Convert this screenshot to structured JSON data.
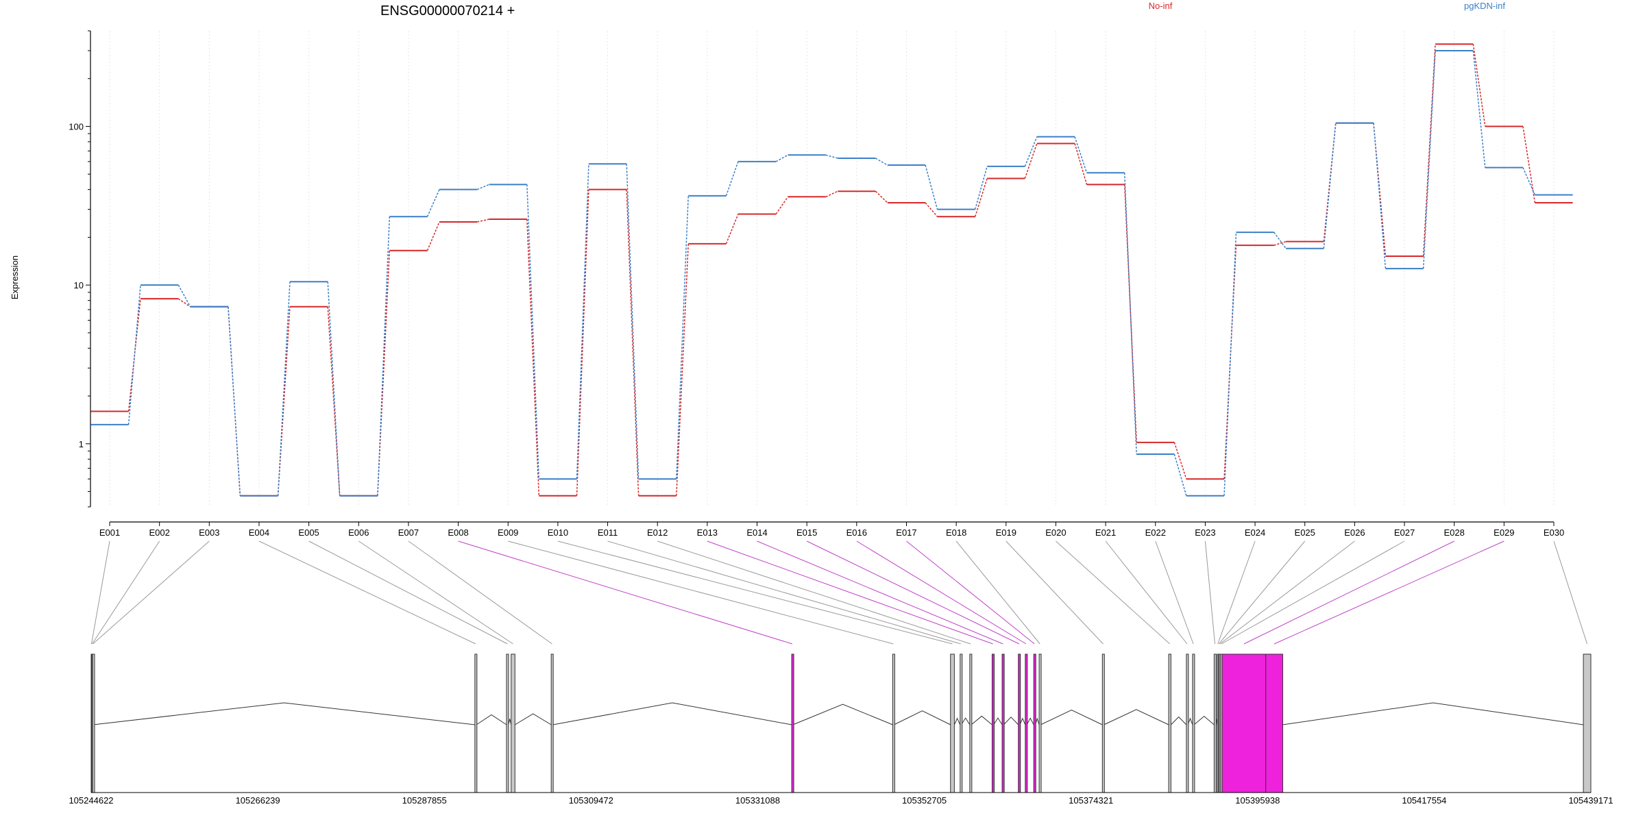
{
  "chart_data": {
    "type": "line",
    "title": "ENSG00000070214 +",
    "xlabel": "",
    "ylabel": "Expression",
    "y_scale": "log",
    "ylim": [
      0.4,
      400
    ],
    "y_ticks": [
      {
        "value": 1,
        "label": "1"
      },
      {
        "value": 10,
        "label": "10"
      },
      {
        "value": 100,
        "label": "100"
      }
    ],
    "grid": "vertical-dotted",
    "legend_placement": "top-right",
    "categories": [
      "E001",
      "E002",
      "E003",
      "E004",
      "E005",
      "E006",
      "E007",
      "E008",
      "E009",
      "E010",
      "E011",
      "E012",
      "E013",
      "E014",
      "E015",
      "E016",
      "E017",
      "E018",
      "E019",
      "E020",
      "E021",
      "E022",
      "E023",
      "E024",
      "E025",
      "E026",
      "E027",
      "E028",
      "E029",
      "E030"
    ],
    "series": [
      {
        "name": "No-inf",
        "color": "#d62728",
        "values": [
          1.6,
          8.2,
          7.3,
          0.47,
          7.3,
          0.47,
          16.5,
          25,
          26,
          0.47,
          40,
          0.47,
          18.2,
          28,
          36,
          39,
          33,
          27,
          47,
          78,
          43,
          1.02,
          0.6,
          17.8,
          18.8,
          105,
          15.2,
          330,
          100,
          33
        ]
      },
      {
        "name": "pgKDN-inf",
        "color": "#3a7fc7",
        "values": [
          1.32,
          10,
          7.3,
          0.47,
          10.5,
          0.47,
          27,
          40,
          43,
          0.6,
          58,
          0.6,
          36.5,
          60,
          66,
          63,
          57,
          30,
          56,
          86,
          51,
          0.86,
          0.47,
          21.5,
          17,
          105,
          12.7,
          300,
          55,
          37
        ]
      }
    ],
    "gene_model": {
      "coord_labels": [
        "105244622",
        "105266239",
        "105287855",
        "105309472",
        "105331088",
        "105352705",
        "105374321",
        "105395938",
        "105417554",
        "105439171"
      ],
      "coord_range": [
        105244622,
        105439171
      ],
      "default_exon_color": "#c8c8c8",
      "highlight_color": "#ee22dd",
      "exons": [
        {
          "id": "E001",
          "start": 105244622,
          "end": 105244700,
          "highlight": false
        },
        {
          "id": "E002",
          "start": 105244700,
          "end": 105244800,
          "highlight": false
        },
        {
          "id": "E003",
          "start": 105244800,
          "end": 105244880,
          "highlight": false
        },
        {
          "id": "E004",
          "start": 105294400,
          "end": 105294600,
          "highlight": false
        },
        {
          "id": "E005",
          "start": 105298500,
          "end": 105298750,
          "highlight": false
        },
        {
          "id": "E006",
          "start": 105299100,
          "end": 105299600,
          "highlight": false
        },
        {
          "id": "E007",
          "start": 105304300,
          "end": 105304520,
          "highlight": false
        },
        {
          "id": "E008",
          "start": 105335500,
          "end": 105335650,
          "highlight": true
        },
        {
          "id": "E009",
          "start": 105348600,
          "end": 105348770,
          "highlight": false
        },
        {
          "id": "E010",
          "start": 105356100,
          "end": 105356600,
          "highlight": false
        },
        {
          "id": "E011",
          "start": 105357350,
          "end": 105357500,
          "highlight": false
        },
        {
          "id": "E012",
          "start": 105358600,
          "end": 105358800,
          "highlight": false
        },
        {
          "id": "E013",
          "start": 105361500,
          "end": 105361700,
          "highlight": true
        },
        {
          "id": "E014",
          "start": 105362800,
          "end": 105363000,
          "highlight": true
        },
        {
          "id": "E015",
          "start": 105364900,
          "end": 105365100,
          "highlight": true
        },
        {
          "id": "E016",
          "start": 105365800,
          "end": 105366000,
          "highlight": true
        },
        {
          "id": "E017",
          "start": 105366900,
          "end": 105367100,
          "highlight": true
        },
        {
          "id": "E018",
          "start": 105367600,
          "end": 105367800,
          "highlight": false
        },
        {
          "id": "E019",
          "start": 105375800,
          "end": 105376000,
          "highlight": false
        },
        {
          "id": "E020",
          "start": 105384400,
          "end": 105384700,
          "highlight": false
        },
        {
          "id": "E021",
          "start": 105386700,
          "end": 105386900,
          "highlight": false
        },
        {
          "id": "E022",
          "start": 105387500,
          "end": 105387700,
          "highlight": false
        },
        {
          "id": "E023",
          "start": 105390300,
          "end": 105390500,
          "highlight": false
        },
        {
          "id": "E024",
          "start": 105390700,
          "end": 105390850,
          "highlight": false
        },
        {
          "id": "E025",
          "start": 105390850,
          "end": 105390980,
          "highlight": false
        },
        {
          "id": "E026",
          "start": 105390980,
          "end": 105391150,
          "highlight": false
        },
        {
          "id": "E027",
          "start": 105391150,
          "end": 105391350,
          "highlight": false
        },
        {
          "id": "E028",
          "start": 105391350,
          "end": 105397000,
          "highlight": true
        },
        {
          "id": "E029",
          "start": 105397000,
          "end": 105399200,
          "highlight": true
        },
        {
          "id": "E030",
          "start": 105438200,
          "end": 105439171,
          "highlight": false
        }
      ]
    }
  }
}
